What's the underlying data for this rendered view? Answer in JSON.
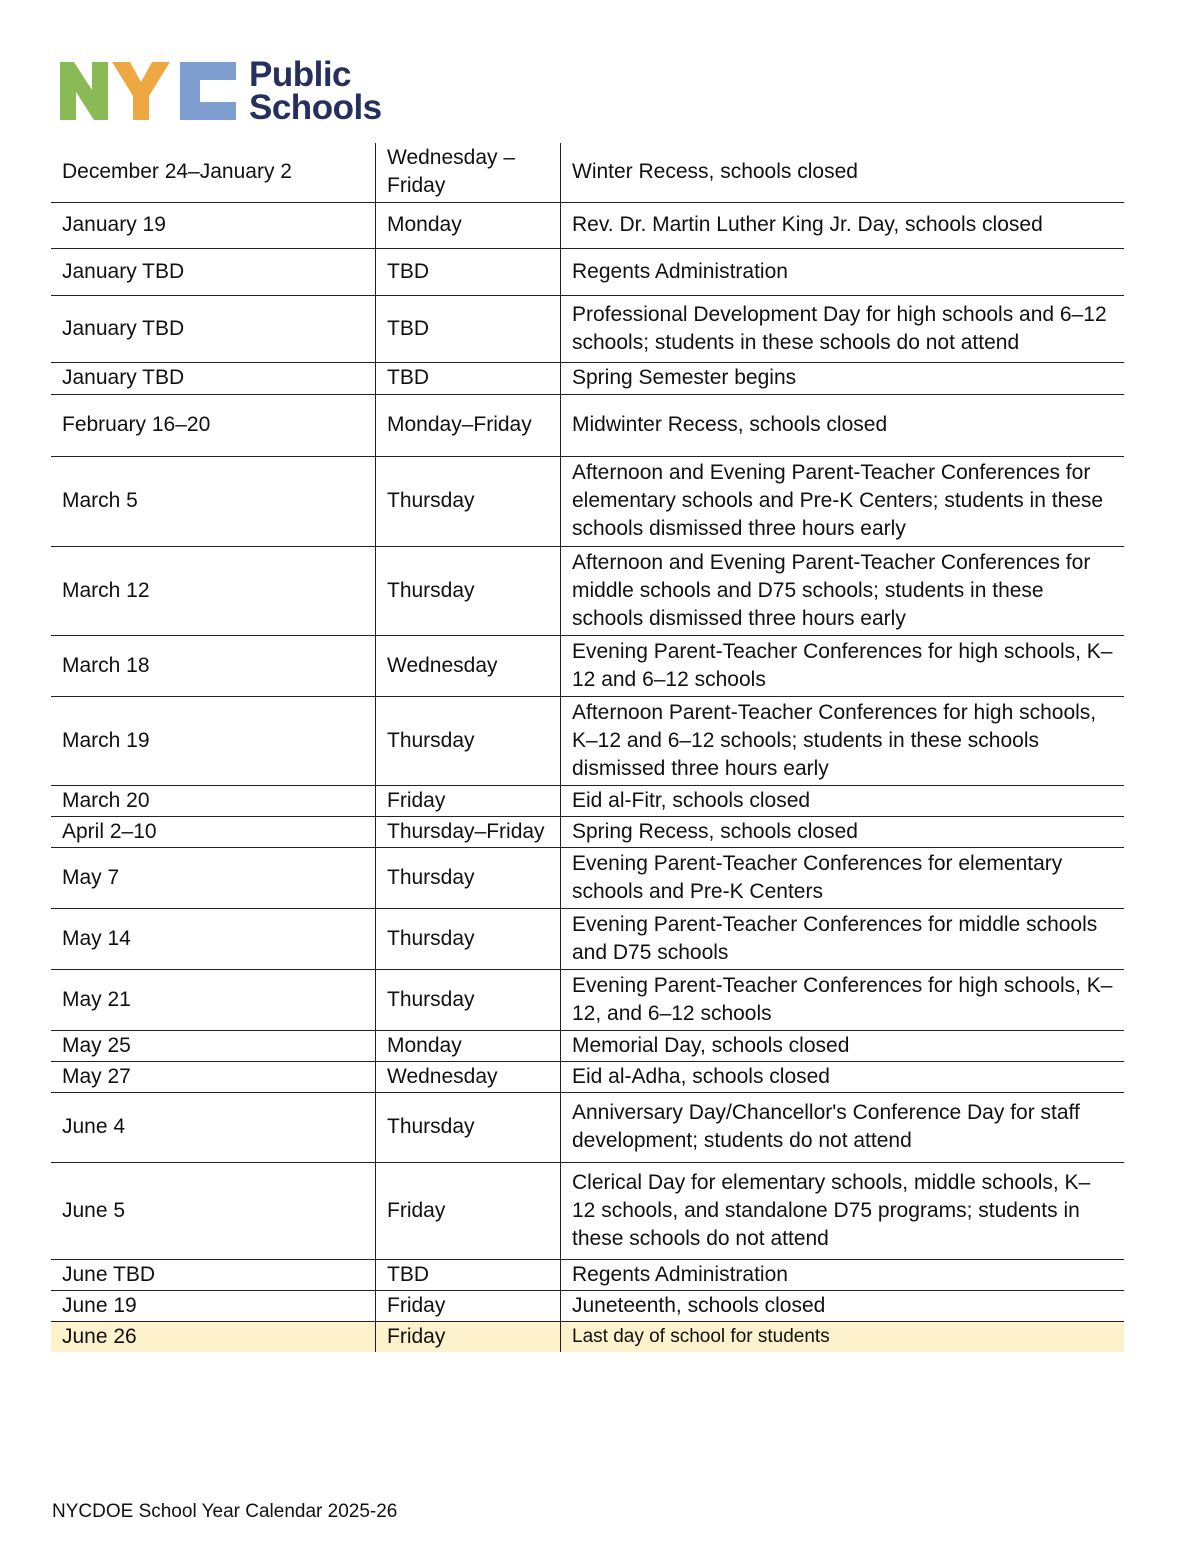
{
  "logo": {
    "text": "NYC Public Schools",
    "line1": "Public",
    "line2": "Schools",
    "colors": {
      "n": "#8aba56",
      "y": "#eea843",
      "c": "#7f9fd1",
      "text": "#25305f"
    }
  },
  "rows": [
    {
      "date": "December 24–January 2",
      "day": "Wednesday –Friday",
      "event": "Winter Recess, schools closed"
    },
    {
      "date": "January 19",
      "day": "Monday",
      "event": "Rev. Dr. Martin Luther King Jr. Day, schools closed"
    },
    {
      "date": "January TBD",
      "day": "TBD",
      "event": "Regents Administration"
    },
    {
      "date": "January TBD",
      "day": "TBD",
      "event": "Professional Development Day for high schools and 6–12 schools; students in these schools do not attend"
    },
    {
      "date": "January TBD",
      "day": "TBD",
      "event": "Spring Semester begins"
    },
    {
      "date": "February 16–20",
      "day": "Monday–Friday",
      "event": "Midwinter Recess, schools closed"
    },
    {
      "date": "March 5",
      "day": "Thursday",
      "event": "Afternoon and Evening Parent-Teacher Conferences for elementary schools and Pre-K Centers; students in these schools dismissed three hours early"
    },
    {
      "date": "March 12",
      "day": "Thursday",
      "event": "Afternoon and Evening Parent-Teacher Conferences for middle schools and D75 schools; students in these schools dismissed three hours early"
    },
    {
      "date": "March 18",
      "day": "Wednesday",
      "event": "Evening Parent-Teacher Conferences for high schools, K–12 and 6–12 schools"
    },
    {
      "date": "March 19",
      "day": "Thursday",
      "event": "Afternoon Parent-Teacher Conferences for high schools, K–12 and 6–12 schools; students in these schools dismissed three hours early"
    },
    {
      "date": "March 20",
      "day": "Friday",
      "event": "Eid al-Fitr, schools closed"
    },
    {
      "date": "April 2–10",
      "day": "Thursday–Friday",
      "event": "Spring Recess, schools closed"
    },
    {
      "date": "May 7",
      "day": "Thursday",
      "event": "Evening Parent-Teacher Conferences for elementary schools and Pre-K Centers"
    },
    {
      "date": "May 14",
      "day": "Thursday",
      "event": "Evening Parent-Teacher Conferences for middle schools and D75 schools"
    },
    {
      "date": "May 21",
      "day": "Thursday",
      "event": "Evening Parent-Teacher Conferences for high schools, K–12, and 6–12 schools"
    },
    {
      "date": "May 25",
      "day": "Monday",
      "event": "Memorial Day, schools closed"
    },
    {
      "date": "May 27",
      "day": "Wednesday",
      "event": "Eid al-Adha, schools closed"
    },
    {
      "date": "June 4",
      "day": "Thursday",
      "event": "Anniversary Day/Chancellor's Conference Day for staff development; students do not attend"
    },
    {
      "date": "June 5",
      "day": "Friday",
      "event": "Clerical Day for elementary schools, middle schools, K–12 schools, and standalone D75 programs; students in these schools do not attend"
    },
    {
      "date": "June TBD",
      "day": "TBD",
      "event": "Regents Administration"
    },
    {
      "date": "June 19",
      "day": "Friday",
      "event": "Juneteenth, schools closed"
    },
    {
      "date": "June 26",
      "day": "Friday",
      "event": "Last day of school for students",
      "highlight": "#fdf2cc"
    }
  ],
  "footer": "NYCDOE School Year Calendar 2025-26"
}
